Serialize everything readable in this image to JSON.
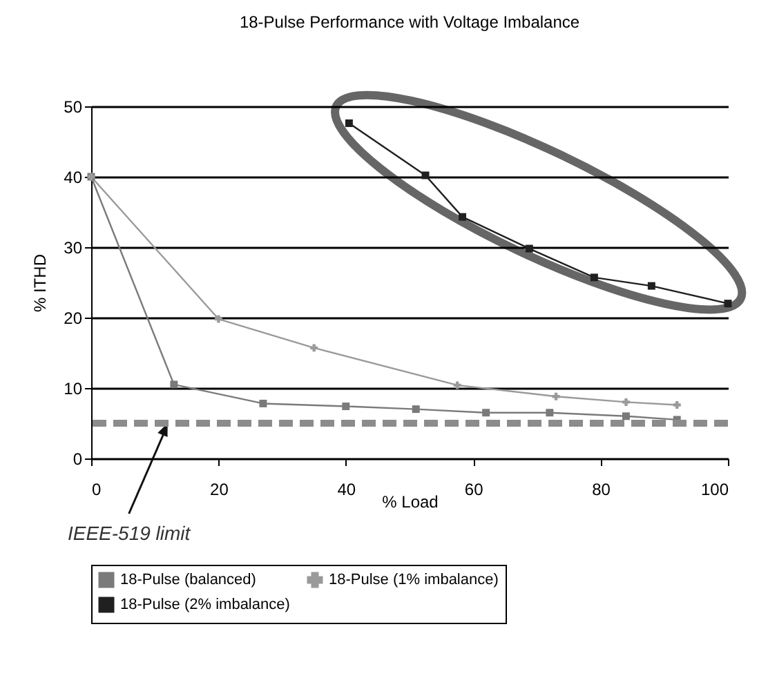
{
  "chart_data": {
    "type": "line",
    "title": "18-Pulse Performance with Voltage Imbalance",
    "xlabel": "% Load",
    "ylabel": "% ITHD",
    "series": [
      {
        "name": "18-Pulse (balanced)",
        "color": "#7a7a7a",
        "marker": "square",
        "x": [
          0,
          13,
          27,
          40,
          51,
          62,
          72,
          84,
          92
        ],
        "values": [
          40,
          10.5,
          7.8,
          7.4,
          7,
          6.5,
          6.5,
          6,
          5.5
        ]
      },
      {
        "name": "18-Pulse (1% imbalance)",
        "color": "#9a9a9a",
        "marker": "cross",
        "x": [
          0,
          20,
          35,
          57.5,
          73,
          84,
          92
        ],
        "values": [
          40,
          19.8,
          15.7,
          10.4,
          8.8,
          8,
          7.6
        ]
      },
      {
        "name": "18-Pulse (2% imbalance)",
        "color": "#202020",
        "marker": "square",
        "x": [
          40.5,
          52.5,
          58.3,
          68.8,
          79,
          88,
          100
        ],
        "values": [
          47.6,
          40.2,
          34.3,
          29.8,
          25.7,
          24.5,
          22
        ]
      }
    ],
    "xlim": [
      0,
      100
    ],
    "xticks": [
      0,
      20,
      40,
      60,
      80,
      100
    ],
    "ylim": [
      0,
      50
    ],
    "yticks": [
      0,
      10,
      20,
      30,
      40,
      50
    ],
    "ref_lines": [
      {
        "axis": "y",
        "value": 5,
        "color": "#8c8c8c",
        "line_style": "dashed"
      }
    ],
    "annotations": [
      {
        "text": "IEEE-519 limit",
        "x": 12,
        "y": 5
      }
    ],
    "grid": "y",
    "legend": "bottom",
    "line_style": "solid"
  }
}
